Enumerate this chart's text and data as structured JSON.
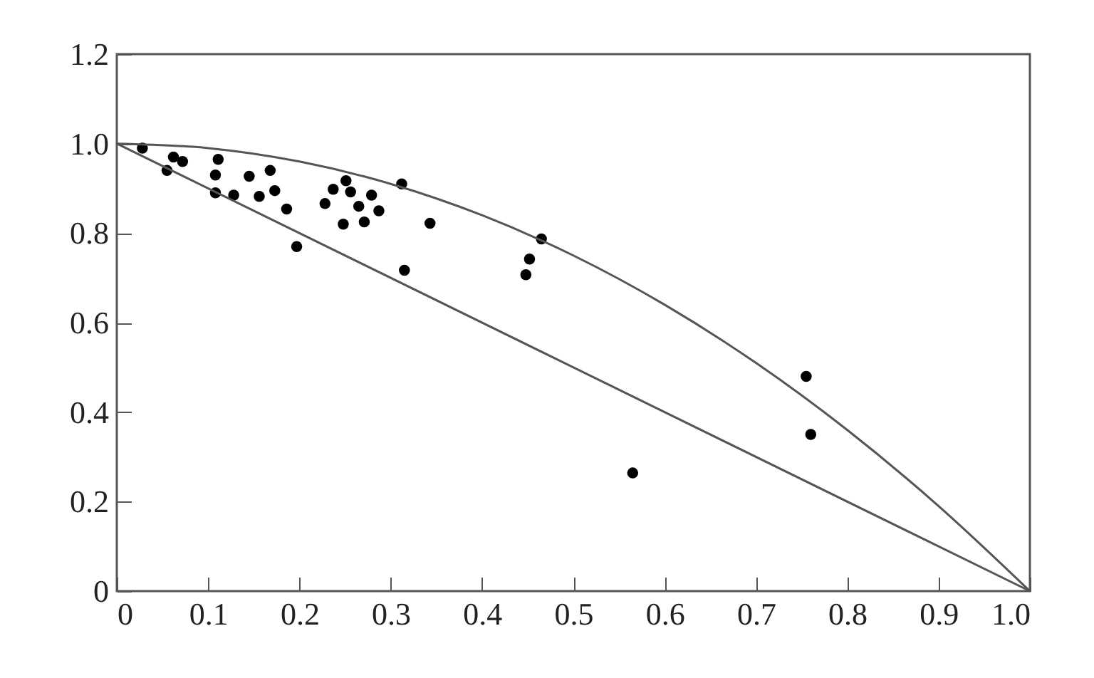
{
  "chart_data": {
    "type": "scatter",
    "xlim": [
      0,
      1
    ],
    "ylim": [
      0,
      1.2
    ],
    "xticks": [
      0,
      0.1,
      0.2,
      0.3,
      0.4,
      0.5,
      0.6,
      0.7,
      0.8,
      0.9,
      {
        "value": 1,
        "label": "1.0"
      }
    ],
    "yticks": [
      0,
      0.2,
      0.4,
      0.6,
      0.8,
      {
        "value": 1,
        "label": "1.0"
      },
      1.2
    ],
    "grid": false,
    "series": [
      {
        "color": "#000000",
        "marker": "circle",
        "x": [
          0.028,
          0.062,
          0.072,
          0.055,
          0.111,
          0.108,
          0.108,
          0.128,
          0.145,
          0.168,
          0.156,
          0.173,
          0.186,
          0.197,
          0.228,
          0.237,
          0.251,
          0.256,
          0.279,
          0.265,
          0.287,
          0.248,
          0.271,
          0.312,
          0.343,
          0.315,
          0.465,
          0.452,
          0.448,
          0.755,
          0.76,
          0.565
        ],
        "values": [
          0.99,
          0.97,
          0.96,
          0.94,
          0.965,
          0.93,
          0.89,
          0.885,
          0.927,
          0.94,
          0.882,
          0.895,
          0.854,
          0.77,
          0.866,
          0.898,
          0.917,
          0.892,
          0.885,
          0.86,
          0.85,
          0.82,
          0.825,
          0.91,
          0.822,
          0.717,
          0.787,
          0.742,
          0.707,
          0.48,
          0.35,
          0.264
        ]
      },
      {
        "type": "line",
        "marker": "none",
        "color": "#555555",
        "x": [
          0,
          1
        ],
        "values": [
          1,
          0
        ]
      },
      {
        "type": "line",
        "marker": "none",
        "color": "#555555",
        "x": [
          0,
          0.1,
          0.2,
          0.3,
          0.4,
          0.5,
          0.6,
          0.7,
          0.8,
          0.9,
          1
        ],
        "values": [
          1,
          0.99,
          0.96,
          0.91,
          0.84,
          0.75,
          0.64,
          0.51,
          0.36,
          0.19,
          0
        ]
      }
    ]
  }
}
